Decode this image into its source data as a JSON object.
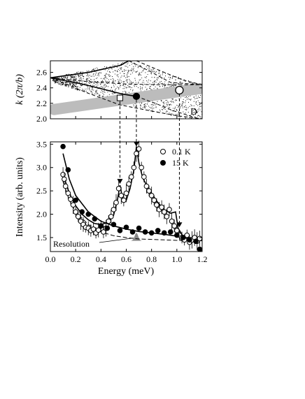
{
  "chart_data": [
    {
      "panel": "top",
      "type": "scatter",
      "ylabel": "k (2π/b)",
      "panel_label": "D",
      "yticks": [
        2.0,
        2.2,
        2.4,
        2.6
      ],
      "ytick_labels": [
        "2.0",
        "2.2",
        "2.4",
        "2.6"
      ],
      "xlim": [
        0.0,
        1.2
      ],
      "ylim": [
        2.0,
        2.75
      ],
      "curves": [
        {
          "style": "solid",
          "points": [
            [
              0.0,
              2.53
            ],
            [
              0.3,
              2.6
            ],
            [
              0.55,
              2.69
            ],
            [
              0.62,
              2.75
            ]
          ]
        },
        {
          "style": "solid",
          "points": [
            [
              0.0,
              2.53
            ],
            [
              0.25,
              2.45
            ],
            [
              0.45,
              2.37
            ],
            [
              0.57,
              2.32
            ],
            [
              0.68,
              2.29
            ]
          ]
        },
        {
          "style": "dashed",
          "points": [
            [
              0.0,
              2.53
            ],
            [
              0.3,
              2.48
            ],
            [
              0.6,
              2.45
            ],
            [
              0.85,
              2.44
            ],
            [
              1.2,
              2.44
            ]
          ]
        },
        {
          "style": "dashed",
          "points": [
            [
              0.62,
              2.75
            ],
            [
              0.78,
              2.62
            ],
            [
              0.95,
              2.47
            ],
            [
              1.2,
              2.44
            ]
          ]
        },
        {
          "style": "dashed",
          "points": [
            [
              0.68,
              2.75
            ],
            [
              0.9,
              2.6
            ],
            [
              1.05,
              2.5
            ],
            [
              1.2,
              2.44
            ]
          ]
        },
        {
          "style": "dashed",
          "points": [
            [
              0.0,
              2.53
            ],
            [
              0.3,
              2.33
            ],
            [
              0.55,
              2.18
            ],
            [
              0.8,
              2.1
            ],
            [
              1.0,
              2.04
            ],
            [
              1.2,
              2.0
            ]
          ]
        },
        {
          "style": "dashed",
          "points": [
            [
              0.68,
              2.29
            ],
            [
              0.83,
              2.2
            ],
            [
              0.98,
              2.1
            ],
            [
              1.12,
              2.03
            ],
            [
              1.17,
              2.0
            ]
          ]
        }
      ],
      "cut_band": {
        "from": [
          0.03,
          2.12
        ],
        "to": [
          1.18,
          2.39
        ]
      },
      "markers": [
        {
          "shape": "square",
          "fill": "open",
          "x": 0.55,
          "y": 2.27
        },
        {
          "shape": "circle",
          "fill": "filled",
          "x": 0.68,
          "y": 2.29
        },
        {
          "shape": "circle",
          "fill": "open",
          "x": 1.02,
          "y": 2.37
        }
      ],
      "arrows_to_lower_panel": [
        0.55,
        0.68,
        1.02
      ]
    },
    {
      "panel": "bottom",
      "type": "scatter",
      "xlabel": "Energy (meV)",
      "ylabel": "Intensity (arb. units)",
      "xlim": [
        0.0,
        1.2
      ],
      "ylim": [
        1.2,
        3.55
      ],
      "xticks": [
        0.0,
        0.2,
        0.4,
        0.6,
        0.8,
        1.0,
        1.2
      ],
      "xtick_labels": [
        "0.0",
        "0.2",
        "0.4",
        "0.6",
        "0.8",
        "1.0",
        "1.2"
      ],
      "yticks": [
        1.5,
        2.0,
        2.5,
        3.0,
        3.5
      ],
      "ytick_labels": [
        "1.5",
        "2.0",
        "2.5",
        "3.0",
        "3.5"
      ],
      "legend_position": "top-right",
      "series": [
        {
          "name": "0.1 K",
          "marker": "open-circle",
          "error_bars": true,
          "points": [
            [
              0.1,
              2.85
            ],
            [
              0.11,
              2.75
            ],
            [
              0.12,
              2.6
            ],
            [
              0.14,
              2.45
            ],
            [
              0.16,
              2.32
            ],
            [
              0.18,
              2.2
            ],
            [
              0.2,
              2.05
            ],
            [
              0.22,
              1.95
            ],
            [
              0.24,
              1.85
            ],
            [
              0.26,
              1.78
            ],
            [
              0.28,
              1.72
            ],
            [
              0.3,
              1.7
            ],
            [
              0.32,
              1.65
            ],
            [
              0.34,
              1.68
            ],
            [
              0.36,
              1.6
            ],
            [
              0.38,
              1.66
            ],
            [
              0.4,
              1.75
            ],
            [
              0.42,
              1.62
            ],
            [
              0.44,
              1.7
            ],
            [
              0.46,
              1.85
            ],
            [
              0.48,
              1.95
            ],
            [
              0.5,
              2.1
            ],
            [
              0.52,
              2.25
            ],
            [
              0.54,
              2.55
            ],
            [
              0.56,
              2.4
            ],
            [
              0.58,
              2.3
            ],
            [
              0.6,
              2.45
            ],
            [
              0.62,
              2.65
            ],
            [
              0.64,
              2.8
            ],
            [
              0.66,
              3.0
            ],
            [
              0.68,
              3.3
            ],
            [
              0.7,
              3.4
            ],
            [
              0.72,
              3.0
            ],
            [
              0.74,
              2.8
            ],
            [
              0.76,
              2.6
            ],
            [
              0.78,
              2.5
            ],
            [
              0.8,
              2.4
            ],
            [
              0.82,
              2.3
            ],
            [
              0.84,
              2.2
            ],
            [
              0.86,
              2.1
            ],
            [
              0.88,
              2.15
            ],
            [
              0.9,
              2.05
            ],
            [
              0.92,
              1.95
            ],
            [
              0.94,
              2.1
            ],
            [
              0.96,
              1.85
            ],
            [
              0.98,
              1.75
            ],
            [
              1.0,
              1.65
            ],
            [
              1.02,
              1.55
            ],
            [
              1.04,
              1.5
            ],
            [
              1.06,
              1.45
            ],
            [
              1.08,
              1.55
            ],
            [
              1.1,
              1.4
            ],
            [
              1.12,
              1.45
            ],
            [
              1.14,
              1.5
            ],
            [
              1.16,
              1.42
            ],
            [
              1.18,
              1.48
            ]
          ]
        },
        {
          "name": "15 K",
          "marker": "filled-circle",
          "error_bars": false,
          "points": [
            [
              0.1,
              3.45
            ],
            [
              0.14,
              2.95
            ],
            [
              0.2,
              2.3
            ],
            [
              0.25,
              2.05
            ],
            [
              0.3,
              2.0
            ],
            [
              0.35,
              1.9
            ],
            [
              0.4,
              1.75
            ],
            [
              0.45,
              1.7
            ],
            [
              0.5,
              1.78
            ],
            [
              0.55,
              1.65
            ],
            [
              0.6,
              1.72
            ],
            [
              0.65,
              1.62
            ],
            [
              0.7,
              1.7
            ],
            [
              0.75,
              1.62
            ],
            [
              0.8,
              1.6
            ],
            [
              0.85,
              1.65
            ],
            [
              0.9,
              1.6
            ],
            [
              0.95,
              1.62
            ],
            [
              1.0,
              1.55
            ],
            [
              1.05,
              1.5
            ],
            [
              1.1,
              1.45
            ],
            [
              1.15,
              1.42
            ],
            [
              1.18,
              1.25
            ]
          ]
        }
      ],
      "fit_curves": [
        {
          "name": "0.1 K fit",
          "style": "solid",
          "points": [
            [
              0.1,
              2.85
            ],
            [
              0.15,
              2.45
            ],
            [
              0.2,
              2.18
            ],
            [
              0.25,
              2.0
            ],
            [
              0.3,
              1.88
            ],
            [
              0.35,
              1.8
            ],
            [
              0.4,
              1.78
            ],
            [
              0.45,
              1.82
            ],
            [
              0.5,
              1.98
            ],
            [
              0.53,
              2.3
            ],
            [
              0.55,
              2.62
            ],
            [
              0.57,
              2.35
            ],
            [
              0.6,
              2.3
            ],
            [
              0.63,
              2.55
            ],
            [
              0.66,
              2.95
            ],
            [
              0.68,
              3.45
            ],
            [
              0.7,
              3.1
            ],
            [
              0.73,
              2.78
            ],
            [
              0.78,
              2.52
            ],
            [
              0.85,
              2.25
            ],
            [
              0.9,
              2.1
            ],
            [
              0.95,
              2.02
            ],
            [
              0.99,
              2.05
            ],
            [
              1.01,
              1.7
            ],
            [
              1.05,
              1.52
            ],
            [
              1.12,
              1.47
            ],
            [
              1.2,
              1.45
            ]
          ]
        },
        {
          "name": "15 K fit",
          "style": "solid",
          "points": [
            [
              0.1,
              3.3
            ],
            [
              0.15,
              2.75
            ],
            [
              0.2,
              2.4
            ],
            [
              0.3,
              2.05
            ],
            [
              0.4,
              1.85
            ],
            [
              0.5,
              1.75
            ],
            [
              0.6,
              1.68
            ],
            [
              0.7,
              1.63
            ],
            [
              0.8,
              1.6
            ],
            [
              0.9,
              1.57
            ],
            [
              1.0,
              1.53
            ],
            [
              1.1,
              1.5
            ],
            [
              1.2,
              1.48
            ]
          ]
        },
        {
          "name": "background",
          "style": "dashed",
          "points": [
            [
              0.1,
              2.7
            ],
            [
              0.15,
              2.3
            ],
            [
              0.2,
              2.05
            ],
            [
              0.3,
              1.78
            ],
            [
              0.4,
              1.62
            ],
            [
              0.5,
              1.54
            ],
            [
              0.6,
              1.5
            ],
            [
              0.7,
              1.47
            ],
            [
              0.8,
              1.46
            ],
            [
              0.9,
              1.45
            ],
            [
              1.0,
              1.44
            ],
            [
              1.1,
              1.43
            ],
            [
              1.2,
              1.43
            ]
          ]
        }
      ],
      "resolution": {
        "label": "Resolution",
        "center": 0.68,
        "half_width": 0.02,
        "base": 1.43,
        "height": 1.6
      },
      "arrow_targets": [
        {
          "x": 0.55,
          "y": 2.65
        },
        {
          "x": 0.68,
          "y": 3.45
        },
        {
          "x": 1.02,
          "y": 1.72
        }
      ]
    }
  ]
}
